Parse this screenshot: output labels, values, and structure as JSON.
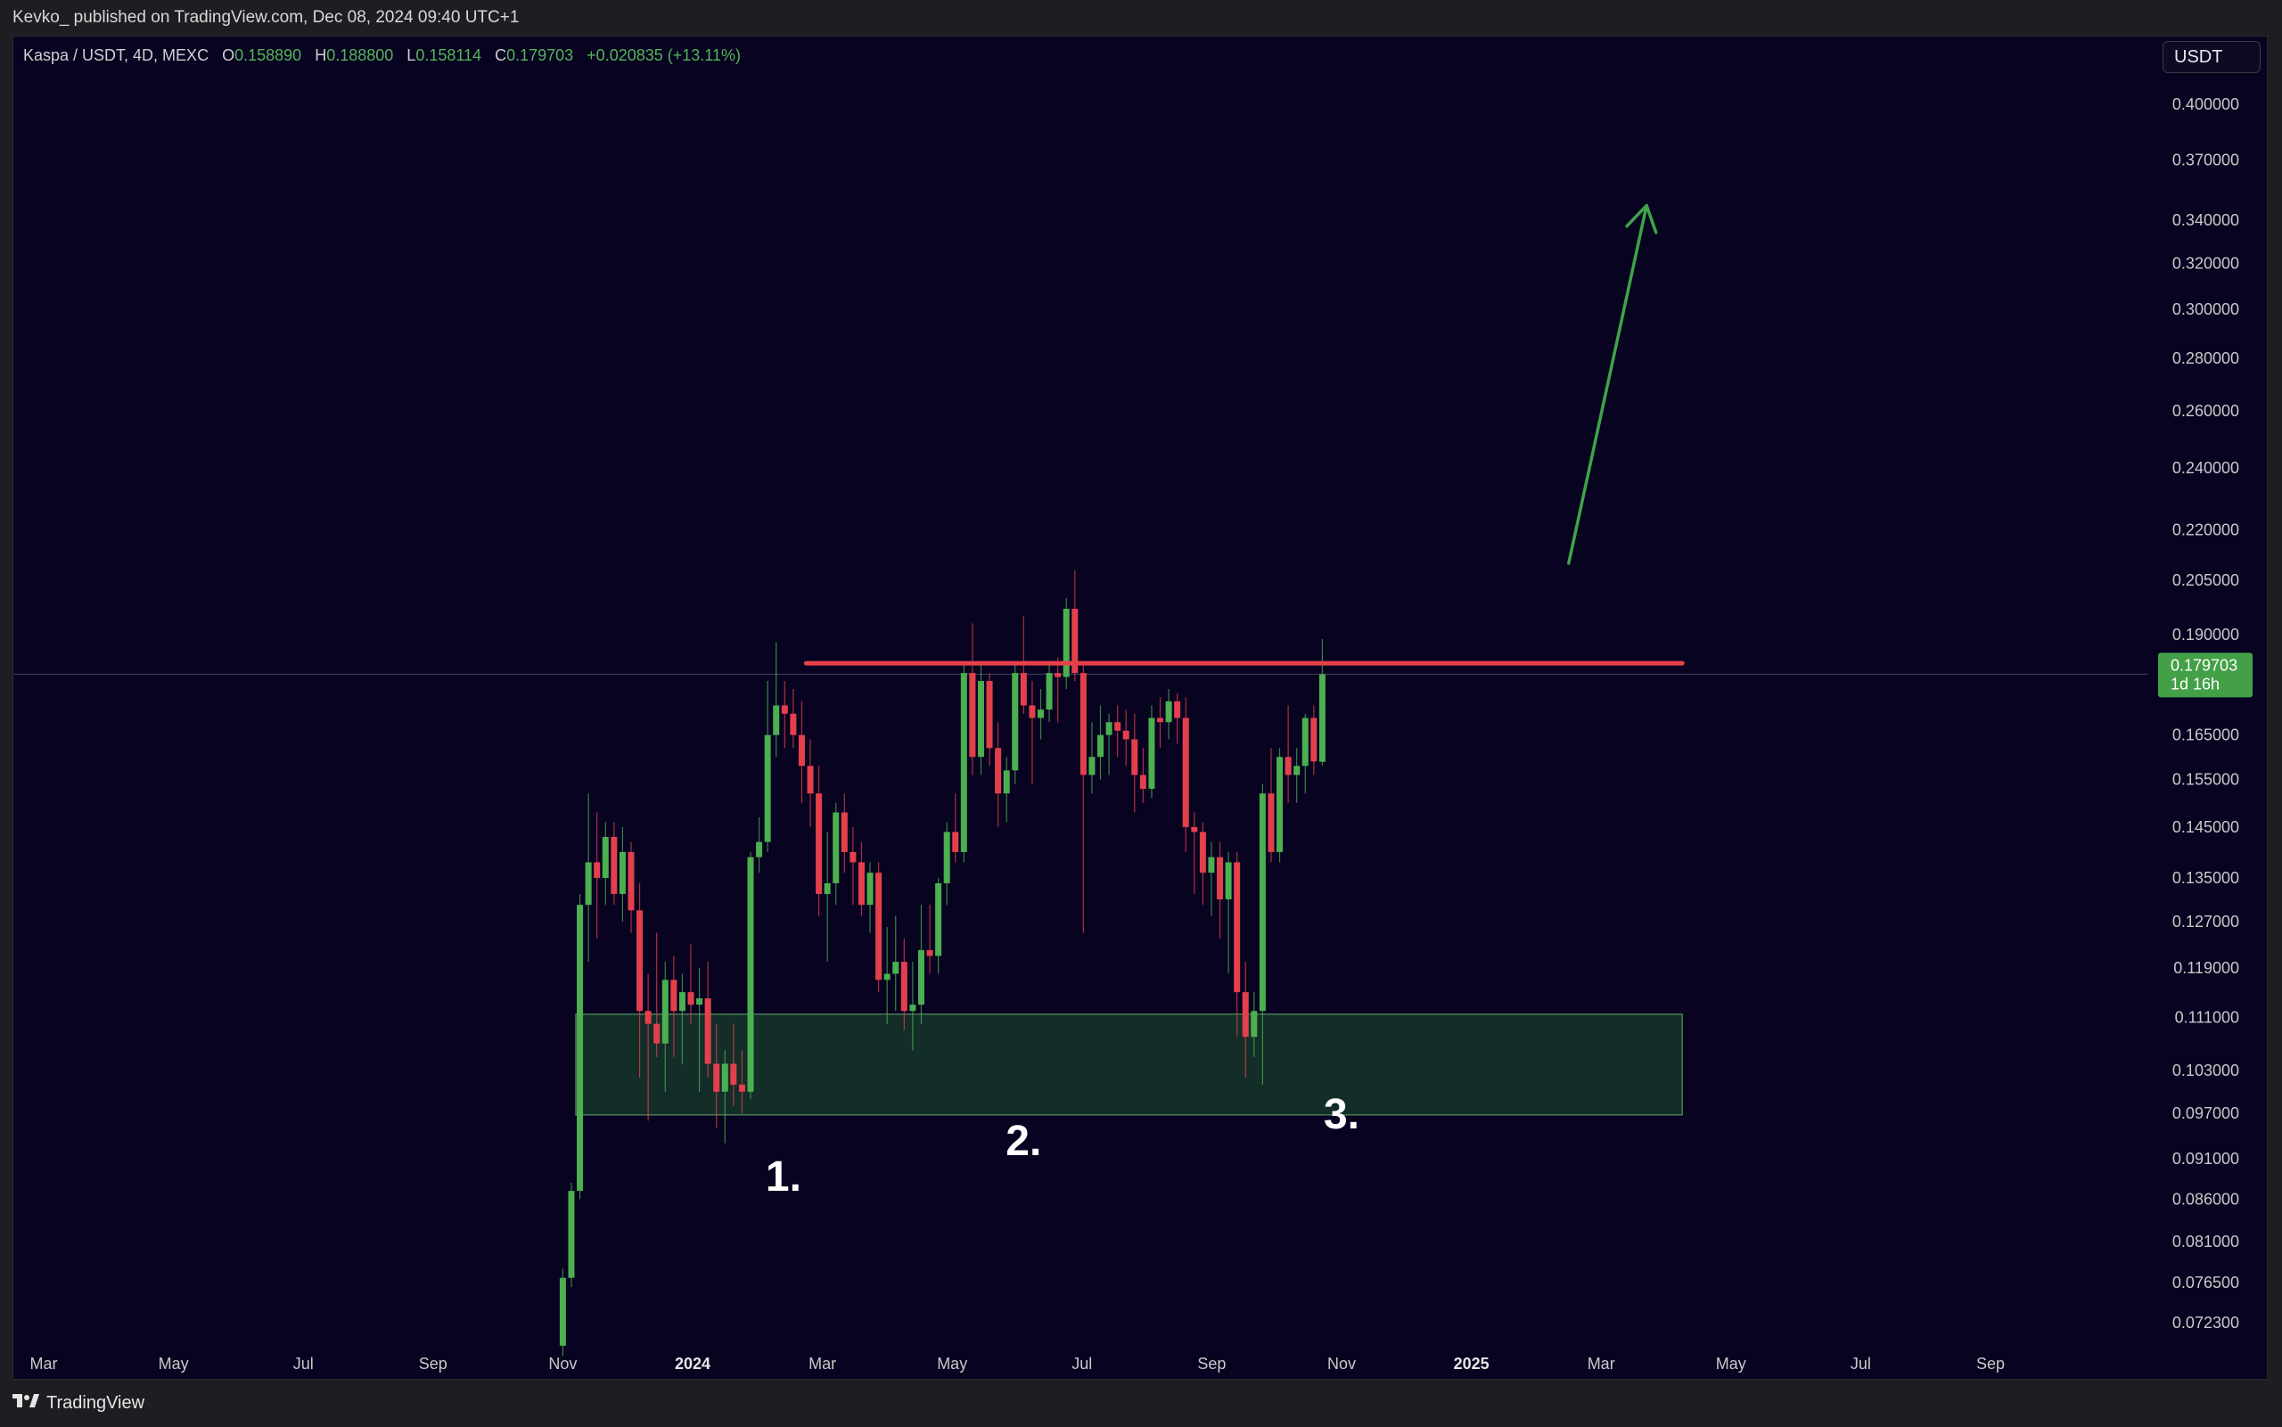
{
  "header": {
    "publisher_text": "Kevko_ published on TradingView.com, Dec 08, 2024 09:40 UTC+1"
  },
  "legend": {
    "symbol": "Kaspa / USDT, 4D, MEXC",
    "o_label": "O",
    "o_value": "0.158890",
    "h_label": "H",
    "h_value": "0.188800",
    "l_label": "L",
    "l_value": "0.158114",
    "c_label": "C",
    "c_value": "0.179703",
    "change": "+0.020835 (+13.11%)"
  },
  "currency_button": "USDT",
  "price_badge": {
    "price": "0.179703",
    "countdown": "1d 16h"
  },
  "footer": {
    "brand": "TradingView"
  },
  "colors": {
    "up": "#4caf50",
    "down": "#e4404c",
    "resistance": "#e8414b",
    "zone_fill": "#15312a",
    "zone_border": "#4b7a55",
    "arrow": "#3fa34a",
    "background": "#070320"
  },
  "chart_data": {
    "type": "candlestick",
    "title": "Kaspa / USDT, 4D, MEXC",
    "y_scale": "log",
    "ylim": [
      0.0695,
      0.42
    ],
    "y_ticks": [
      "0.400000",
      "0.370000",
      "0.340000",
      "0.320000",
      "0.300000",
      "0.280000",
      "0.260000",
      "0.240000",
      "0.220000",
      "0.205000",
      "0.190000",
      "0.165000",
      "0.155000",
      "0.145000",
      "0.135000",
      "0.127000",
      "0.119000",
      "0.111000",
      "0.103000",
      "0.097000",
      "0.091000",
      "0.086000",
      "0.081000",
      "0.076500",
      "0.072300"
    ],
    "x_ticks": [
      {
        "label": "Mar",
        "bold": false
      },
      {
        "label": "May",
        "bold": false
      },
      {
        "label": "Jul",
        "bold": false
      },
      {
        "label": "Sep",
        "bold": false
      },
      {
        "label": "Nov",
        "bold": false
      },
      {
        "label": "2024",
        "bold": true
      },
      {
        "label": "Mar",
        "bold": false
      },
      {
        "label": "May",
        "bold": false
      },
      {
        "label": "Jul",
        "bold": false
      },
      {
        "label": "Sep",
        "bold": false
      },
      {
        "label": "Nov",
        "bold": false
      },
      {
        "label": "2025",
        "bold": true
      },
      {
        "label": "Mar",
        "bold": false
      },
      {
        "label": "May",
        "bold": false
      },
      {
        "label": "Jul",
        "bold": false
      },
      {
        "label": "Sep",
        "bold": false
      }
    ],
    "x_tick_months_from_2023_03": [
      0,
      2,
      4,
      6,
      8,
      10,
      12,
      14,
      16,
      18,
      20,
      22,
      24,
      26,
      28,
      30
    ],
    "resistance_level": 0.1825,
    "resistance_span_months": [
      11.75,
      25.25
    ],
    "support_zone": {
      "low": 0.0968,
      "high": 0.1115,
      "span_months": [
        8.2,
        25.25
      ]
    },
    "annotations": [
      {
        "text": "1.",
        "month": 11.4,
        "price": 0.087
      },
      {
        "text": "2.",
        "month": 15.1,
        "price": 0.0915
      },
      {
        "text": "3.",
        "month": 20.0,
        "price": 0.095
      }
    ],
    "arrow": {
      "from": {
        "month": 23.5,
        "price": 0.21
      },
      "to": {
        "month": 24.7,
        "price": 0.347
      }
    },
    "candles": [
      [
        0.07,
        0.078,
        0.069,
        0.077
      ],
      [
        0.077,
        0.088,
        0.076,
        0.087
      ],
      [
        0.087,
        0.132,
        0.086,
        0.13
      ],
      [
        0.13,
        0.152,
        0.12,
        0.138
      ],
      [
        0.138,
        0.148,
        0.124,
        0.135
      ],
      [
        0.135,
        0.146,
        0.13,
        0.143
      ],
      [
        0.143,
        0.146,
        0.13,
        0.132
      ],
      [
        0.132,
        0.145,
        0.127,
        0.14
      ],
      [
        0.14,
        0.142,
        0.125,
        0.129
      ],
      [
        0.129,
        0.134,
        0.102,
        0.112
      ],
      [
        0.112,
        0.118,
        0.096,
        0.11
      ],
      [
        0.11,
        0.125,
        0.105,
        0.107
      ],
      [
        0.107,
        0.12,
        0.1,
        0.117
      ],
      [
        0.117,
        0.121,
        0.105,
        0.112
      ],
      [
        0.112,
        0.118,
        0.104,
        0.115
      ],
      [
        0.115,
        0.123,
        0.11,
        0.113
      ],
      [
        0.113,
        0.119,
        0.1,
        0.114
      ],
      [
        0.114,
        0.12,
        0.102,
        0.104
      ],
      [
        0.104,
        0.11,
        0.095,
        0.1
      ],
      [
        0.1,
        0.106,
        0.093,
        0.104
      ],
      [
        0.104,
        0.11,
        0.098,
        0.101
      ],
      [
        0.101,
        0.106,
        0.097,
        0.1
      ],
      [
        0.1,
        0.14,
        0.099,
        0.139
      ],
      [
        0.139,
        0.147,
        0.136,
        0.142
      ],
      [
        0.142,
        0.178,
        0.14,
        0.165
      ],
      [
        0.165,
        0.188,
        0.16,
        0.172
      ],
      [
        0.172,
        0.178,
        0.162,
        0.17
      ],
      [
        0.17,
        0.176,
        0.162,
        0.165
      ],
      [
        0.165,
        0.173,
        0.15,
        0.158
      ],
      [
        0.158,
        0.164,
        0.145,
        0.152
      ],
      [
        0.152,
        0.158,
        0.128,
        0.132
      ],
      [
        0.132,
        0.144,
        0.12,
        0.134
      ],
      [
        0.134,
        0.15,
        0.13,
        0.148
      ],
      [
        0.148,
        0.152,
        0.136,
        0.14
      ],
      [
        0.14,
        0.145,
        0.13,
        0.138
      ],
      [
        0.138,
        0.142,
        0.128,
        0.13
      ],
      [
        0.13,
        0.138,
        0.125,
        0.136
      ],
      [
        0.136,
        0.138,
        0.115,
        0.117
      ],
      [
        0.117,
        0.126,
        0.11,
        0.118
      ],
      [
        0.118,
        0.128,
        0.112,
        0.12
      ],
      [
        0.12,
        0.124,
        0.109,
        0.112
      ],
      [
        0.112,
        0.12,
        0.106,
        0.113
      ],
      [
        0.113,
        0.13,
        0.11,
        0.122
      ],
      [
        0.122,
        0.13,
        0.118,
        0.121
      ],
      [
        0.121,
        0.135,
        0.118,
        0.134
      ],
      [
        0.134,
        0.146,
        0.13,
        0.144
      ],
      [
        0.144,
        0.152,
        0.138,
        0.14
      ],
      [
        0.14,
        0.182,
        0.138,
        0.18
      ],
      [
        0.18,
        0.193,
        0.156,
        0.16
      ],
      [
        0.16,
        0.182,
        0.156,
        0.178
      ],
      [
        0.178,
        0.18,
        0.158,
        0.162
      ],
      [
        0.162,
        0.168,
        0.145,
        0.152
      ],
      [
        0.152,
        0.16,
        0.146,
        0.157
      ],
      [
        0.157,
        0.182,
        0.154,
        0.18
      ],
      [
        0.18,
        0.195,
        0.17,
        0.172
      ],
      [
        0.172,
        0.178,
        0.154,
        0.169
      ],
      [
        0.169,
        0.176,
        0.164,
        0.171
      ],
      [
        0.171,
        0.183,
        0.168,
        0.18
      ],
      [
        0.18,
        0.184,
        0.168,
        0.179
      ],
      [
        0.179,
        0.2,
        0.176,
        0.197
      ],
      [
        0.197,
        0.208,
        0.178,
        0.18
      ],
      [
        0.18,
        0.182,
        0.125,
        0.156
      ],
      [
        0.156,
        0.168,
        0.152,
        0.16
      ],
      [
        0.16,
        0.172,
        0.155,
        0.165
      ],
      [
        0.165,
        0.17,
        0.156,
        0.168
      ],
      [
        0.168,
        0.172,
        0.16,
        0.166
      ],
      [
        0.166,
        0.171,
        0.158,
        0.164
      ],
      [
        0.164,
        0.17,
        0.148,
        0.156
      ],
      [
        0.156,
        0.162,
        0.15,
        0.153
      ],
      [
        0.153,
        0.172,
        0.151,
        0.169
      ],
      [
        0.169,
        0.174,
        0.162,
        0.168
      ],
      [
        0.168,
        0.176,
        0.164,
        0.173
      ],
      [
        0.173,
        0.175,
        0.163,
        0.169
      ],
      [
        0.169,
        0.174,
        0.14,
        0.145
      ],
      [
        0.145,
        0.148,
        0.132,
        0.144
      ],
      [
        0.144,
        0.146,
        0.13,
        0.136
      ],
      [
        0.136,
        0.142,
        0.128,
        0.139
      ],
      [
        0.139,
        0.142,
        0.124,
        0.131
      ],
      [
        0.131,
        0.14,
        0.118,
        0.138
      ],
      [
        0.138,
        0.14,
        0.108,
        0.115
      ],
      [
        0.115,
        0.12,
        0.102,
        0.108
      ],
      [
        0.108,
        0.115,
        0.105,
        0.112
      ],
      [
        0.112,
        0.154,
        0.101,
        0.152
      ],
      [
        0.152,
        0.162,
        0.138,
        0.14
      ],
      [
        0.14,
        0.162,
        0.138,
        0.16
      ],
      [
        0.16,
        0.172,
        0.15,
        0.156
      ],
      [
        0.156,
        0.162,
        0.15,
        0.158
      ],
      [
        0.158,
        0.17,
        0.152,
        0.169
      ],
      [
        0.169,
        0.172,
        0.156,
        0.159
      ],
      [
        0.1589,
        0.1888,
        0.1581,
        0.1797
      ]
    ]
  }
}
